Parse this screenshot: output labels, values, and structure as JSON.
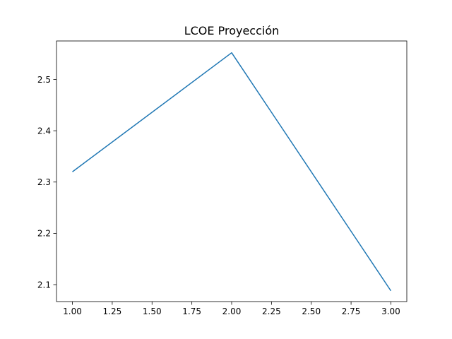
{
  "chart_data": {
    "type": "line",
    "title": "LCOE Proyección",
    "xlabel": "",
    "ylabel": "",
    "xlim": [
      0.9,
      3.1
    ],
    "ylim": [
      2.067,
      2.575
    ],
    "xticks": [
      1.0,
      1.25,
      1.5,
      1.75,
      2.0,
      2.25,
      2.5,
      2.75,
      3.0
    ],
    "xtick_labels": [
      "1.00",
      "1.25",
      "1.50",
      "1.75",
      "2.00",
      "2.25",
      "2.50",
      "2.75",
      "3.00"
    ],
    "yticks": [
      2.1,
      2.2,
      2.3,
      2.4,
      2.5
    ],
    "ytick_labels": [
      "2.1",
      "2.2",
      "2.3",
      "2.4",
      "2.5"
    ],
    "grid": false,
    "legend": "none",
    "series": [
      {
        "x": [
          1,
          2,
          3
        ],
        "y": [
          2.32,
          2.552,
          2.088
        ],
        "color": "#1f77b4"
      }
    ]
  }
}
